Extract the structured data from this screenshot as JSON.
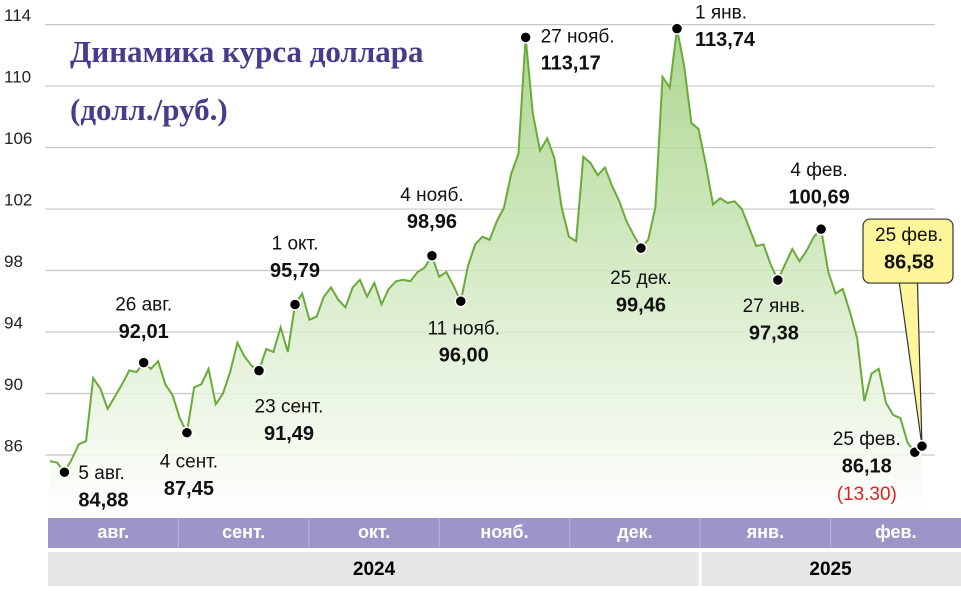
{
  "chart_data": {
    "type": "area",
    "title": "Динамика курса доллара",
    "subtitle": "(долл./руб.)",
    "color": "#6aaa3a",
    "fill_color": "#b5dc98",
    "ylim": [
      81.9,
      115.6
    ],
    "yticks": [
      86,
      90,
      94,
      98,
      102,
      106,
      110,
      114
    ],
    "grid": true,
    "months": [
      "авг.",
      "сент.",
      "окт.",
      "нояб.",
      "дек.",
      "янв.",
      "фев."
    ],
    "years": [
      "2024",
      "2025"
    ],
    "values": [
      85.6,
      85.5,
      84.88,
      85.7,
      86.7,
      86.9,
      91.0,
      90.3,
      89.0,
      89.8,
      90.6,
      91.5,
      91.4,
      92.01,
      91.6,
      92.1,
      90.6,
      89.9,
      88.4,
      87.45,
      90.4,
      90.6,
      91.6,
      89.3,
      90.0,
      91.4,
      93.3,
      92.4,
      91.8,
      91.49,
      92.9,
      92.7,
      94.3,
      92.7,
      95.79,
      96.5,
      94.8,
      95.0,
      96.3,
      96.9,
      96.1,
      95.6,
      96.9,
      97.4,
      96.3,
      97.2,
      95.8,
      96.8,
      97.3,
      97.4,
      97.3,
      97.9,
      98.2,
      98.96,
      97.6,
      97.9,
      97.0,
      96.0,
      98.3,
      99.7,
      100.2,
      100.0,
      101.2,
      102.1,
      104.3,
      105.6,
      113.17,
      108.2,
      105.8,
      106.6,
      105.3,
      102.1,
      100.2,
      99.9,
      105.4,
      105.0,
      104.2,
      104.7,
      103.5,
      102.5,
      101.2,
      100.3,
      99.46,
      100.0,
      102.1,
      110.6,
      109.9,
      113.74,
      111.3,
      107.6,
      107.2,
      104.9,
      102.3,
      102.7,
      102.4,
      102.5,
      102.0,
      100.8,
      99.6,
      99.7,
      98.4,
      97.38,
      98.4,
      99.4,
      98.6,
      99.3,
      100.2,
      100.69,
      97.9,
      96.5,
      96.8,
      95.3,
      93.6,
      89.5,
      91.3,
      91.6,
      89.4,
      88.6,
      88.4,
      86.8,
      86.18,
      86.58
    ],
    "annotations": [
      {
        "date": "5 авг.",
        "value": 84.88,
        "value_label": "84,88"
      },
      {
        "date": "26 авг.",
        "value": 92.01,
        "value_label": "92,01"
      },
      {
        "date": "4 сент.",
        "value": 87.45,
        "value_label": "87,45"
      },
      {
        "date": "23 сент.",
        "value": 91.49,
        "value_label": "91,49"
      },
      {
        "date": "1 окт.",
        "value": 95.79,
        "value_label": "95,79"
      },
      {
        "date": "4 нояб.",
        "value": 98.96,
        "value_label": "98,96"
      },
      {
        "date": "11 нояб.",
        "value": 96.0,
        "value_label": "96,00"
      },
      {
        "date": "27 нояб.",
        "value": 113.17,
        "value_label": "113,17"
      },
      {
        "date": "25 дек.",
        "value": 99.46,
        "value_label": "99,46"
      },
      {
        "date": "1 янв.",
        "value": 113.74,
        "value_label": "113,74"
      },
      {
        "date": "27 янв.",
        "value": 97.38,
        "value_label": "97,38"
      },
      {
        "date": "4 фев.",
        "value": 100.69,
        "value_label": "100,69"
      },
      {
        "date": "25 фев.",
        "value": 86.18,
        "value_label": "86,18",
        "note": "(13.30)"
      },
      {
        "date": "25 фев.",
        "value": 86.58,
        "value_label": "86,58"
      }
    ]
  }
}
